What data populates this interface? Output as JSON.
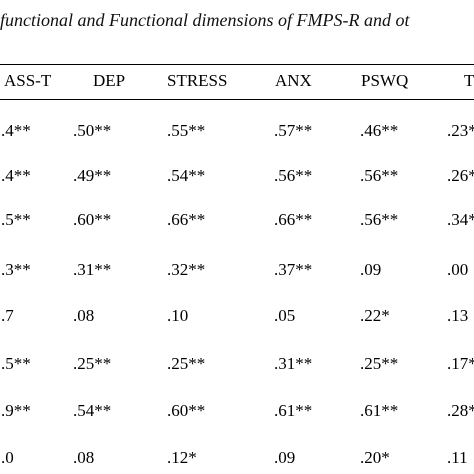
{
  "caption": "functional and Functional dimensions of FMPS-R and ot",
  "table": {
    "columns": [
      "ASS-T",
      "DEP",
      "STRESS",
      "ANX",
      "PSWQ",
      "T"
    ],
    "rows": [
      [
        ".4**",
        ".50**",
        ".55**",
        ".57**",
        ".46**",
        ".23*"
      ],
      [
        ".4**",
        ".49**",
        ".54**",
        ".56**",
        ".56**",
        ".26*"
      ],
      [
        ".5**",
        ".60**",
        ".66**",
        ".66**",
        ".56**",
        ".34*"
      ],
      [
        ".3**",
        ".31**",
        ".32**",
        ".37**",
        ".09",
        ".00"
      ],
      [
        ".7",
        ".08",
        ".10",
        ".05",
        ".22*",
        ".13"
      ],
      [
        ".5**",
        ".25**",
        ".25**",
        ".31**",
        ".25**",
        ".17*"
      ],
      [
        ".9**",
        ".54**",
        ".60**",
        ".61**",
        ".61**",
        ".28*"
      ],
      [
        ".0",
        ".08",
        ".12*",
        ".09",
        ".20*",
        ".11"
      ]
    ]
  }
}
